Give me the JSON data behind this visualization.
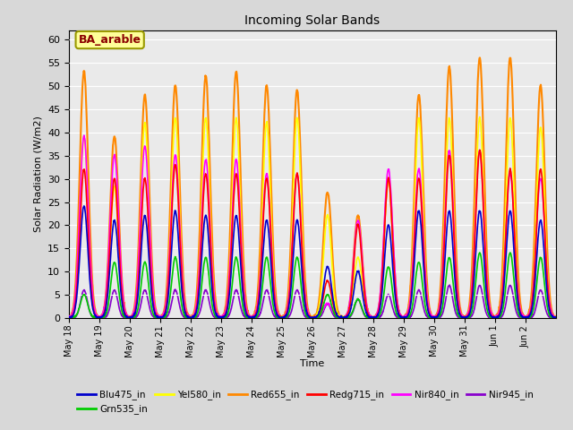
{
  "title": "Incoming Solar Bands",
  "xlabel": "Time",
  "ylabel": "Solar Radiation (W/m2)",
  "annotation": "BA_arable",
  "annotation_color": "#8B0000",
  "annotation_bg": "#FFFF99",
  "ylim": [
    0,
    62
  ],
  "yticks": [
    0,
    5,
    10,
    15,
    20,
    25,
    30,
    35,
    40,
    45,
    50,
    55,
    60
  ],
  "bg_color": "#D8D8D8",
  "plot_bg": "#EAEAEA",
  "series": {
    "Blu475_in": {
      "color": "#0000CC",
      "lw": 1.2
    },
    "Grn535_in": {
      "color": "#00CC00",
      "lw": 1.2
    },
    "Yel580_in": {
      "color": "#FFFF00",
      "lw": 1.2
    },
    "Red655_in": {
      "color": "#FF8800",
      "lw": 1.5
    },
    "Redg715_in": {
      "color": "#FF0000",
      "lw": 1.2
    },
    "Nir840_in": {
      "color": "#FF00FF",
      "lw": 1.2
    },
    "Nir945_in": {
      "color": "#8800CC",
      "lw": 1.2
    }
  },
  "n_days": 16,
  "peaks_orange": [
    53,
    39,
    48,
    50,
    52,
    53,
    50,
    49,
    27,
    22,
    30,
    48,
    54,
    56,
    56,
    50
  ],
  "peaks_yellow": [
    39,
    28,
    42,
    43,
    43,
    43,
    42,
    43,
    22,
    13,
    30,
    43,
    43,
    43,
    43,
    41
  ],
  "peaks_green": [
    5,
    12,
    12,
    13,
    13,
    13,
    13,
    13,
    5,
    4,
    11,
    12,
    13,
    14,
    14,
    13
  ],
  "peaks_blue": [
    24,
    21,
    22,
    23,
    22,
    22,
    21,
    21,
    11,
    10,
    20,
    23,
    23,
    23,
    23,
    21
  ],
  "peaks_red": [
    32,
    30,
    30,
    33,
    31,
    31,
    30,
    31,
    8,
    20,
    30,
    30,
    35,
    36,
    32,
    32
  ],
  "peaks_magenta": [
    39,
    35,
    37,
    35,
    34,
    34,
    31,
    31,
    3,
    21,
    32,
    32,
    36,
    36,
    31,
    30
  ],
  "peaks_purple": [
    6,
    6,
    6,
    6,
    6,
    6,
    6,
    6,
    3,
    4,
    5,
    6,
    7,
    7,
    7,
    6
  ],
  "xtick_labels": [
    "May 18",
    "May 19",
    "May 20",
    "May 21",
    "May 22",
    "May 23",
    "May 24",
    "May 25",
    "May 26",
    "May 27",
    "May 28",
    "May 29",
    "May 30",
    "May 31",
    "Jun 1",
    "Jun 2"
  ]
}
